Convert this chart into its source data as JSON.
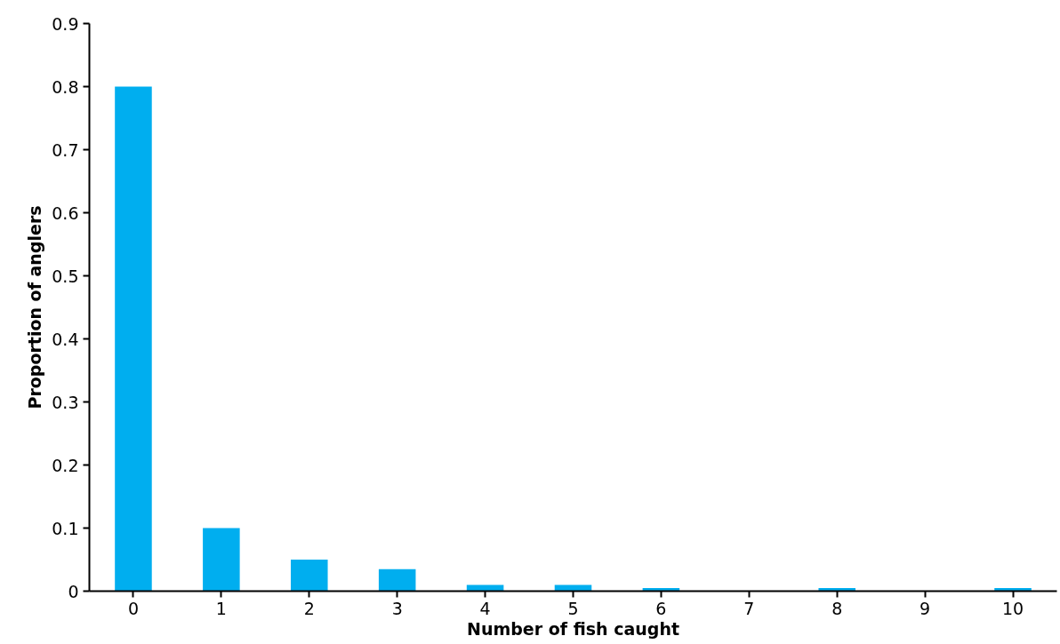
{
  "chart_data": {
    "type": "bar",
    "categories": [
      "0",
      "1",
      "2",
      "3",
      "4",
      "5",
      "6",
      "7",
      "8",
      "9",
      "10"
    ],
    "values": [
      0.8,
      0.1,
      0.05,
      0.035,
      0.01,
      0.01,
      0.005,
      0,
      0.005,
      0,
      0.005
    ],
    "color": "#00aeef",
    "xlabel": "Number of fish caught",
    "ylabel": "Proportion of anglers",
    "ylim": [
      0,
      0.9
    ],
    "yticks": [
      0,
      0.1,
      0.2,
      0.3,
      0.4,
      0.5,
      0.6,
      0.7,
      0.8,
      0.9
    ],
    "grid": false
  }
}
